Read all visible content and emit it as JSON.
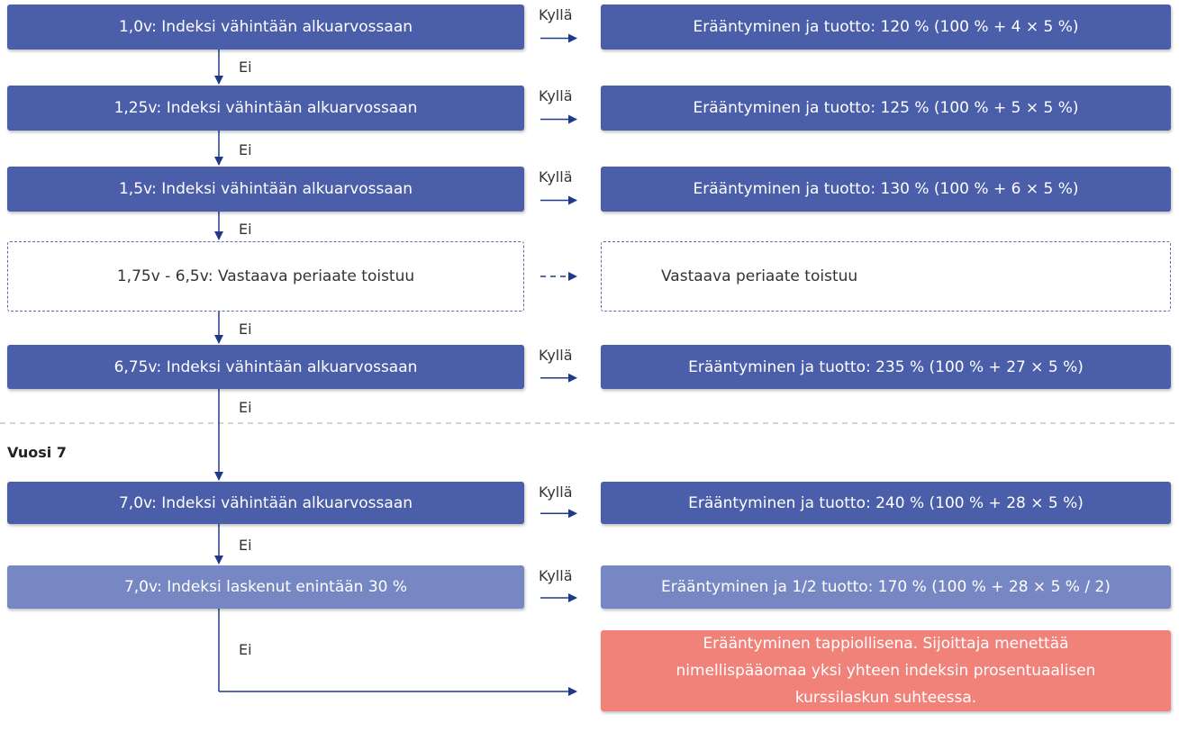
{
  "steps": [
    {
      "condition": "1,0v: Indeksi vähintään alkuarvossaan",
      "yes": "Kyllä",
      "outcome": "Erääntyminen ja tuotto: 120 % (100 % + 4 × 5 %)",
      "no": "Ei"
    },
    {
      "condition": "1,25v: Indeksi vähintään alkuarvossaan",
      "yes": "Kyllä",
      "outcome": "Erääntyminen ja tuotto: 125 % (100 % + 5 × 5 %)",
      "no": "Ei"
    },
    {
      "condition": "1,5v: Indeksi vähintään alkuarvossaan",
      "yes": "Kyllä",
      "outcome": "Erääntyminen ja tuotto: 130 % (100 % + 6 × 5 %)",
      "no": "Ei"
    },
    {
      "condition": "1,75v - 6,5v: Vastaava periaate toistuu",
      "outcome": "Vastaava periaate toistuu",
      "no": "Ei"
    },
    {
      "condition": "6,75v: Indeksi vähintään alkuarvossaan",
      "yes": "Kyllä",
      "outcome": "Erääntyminen ja tuotto: 235 % (100 % + 27 × 5 %)",
      "no": "Ei"
    },
    {
      "condition": "7,0v: Indeksi vähintään alkuarvossaan",
      "yes": "Kyllä",
      "outcome": "Erääntyminen ja tuotto: 240 % (100 % + 28 × 5 %)",
      "no": "Ei"
    },
    {
      "condition": "7,0v: Indeksi laskenut enintään 30 %",
      "yes": "Kyllä",
      "outcome": "Erääntyminen ja 1/2 tuotto: 170 % (100 % + 28 × 5 % / 2)",
      "no": "Ei"
    }
  ],
  "section_label": "Vuosi 7",
  "loss_outcome": "Erääntyminen tappiollisena. Sijoittaja menettää nimellispääomaa yksi yhteen indeksin prosentuaalisen kurssilaskun suhteessa."
}
